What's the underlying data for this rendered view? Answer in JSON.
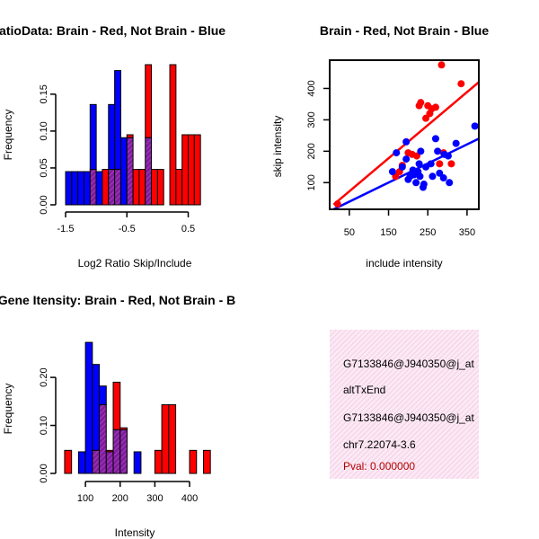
{
  "colors": {
    "red": "#ff0000",
    "blue": "#0000ff",
    "overlap": "#9a2aa8",
    "info_bg": "#f7d9ec"
  },
  "chart_data": [
    {
      "id": "ratio",
      "type": "bar",
      "title": "RatioData: Brain - Red, Not Brain - Blue",
      "xlabel": "Log2 Ratio Skip/Include",
      "ylabel": "Frequency",
      "xticks": [
        -1.5,
        -0.5,
        0.5
      ],
      "yticks": [
        0.0,
        0.05,
        0.1,
        0.15
      ],
      "xlim": [
        -1.5,
        0.8
      ],
      "ylim": [
        0,
        0.19
      ],
      "bin_width": 0.1,
      "series": [
        {
          "name": "Brain",
          "color": "red",
          "bins": [
            {
              "x": -1.1,
              "v": 0.048
            },
            {
              "x": -0.9,
              "v": 0.048
            },
            {
              "x": -0.8,
              "v": 0.048
            },
            {
              "x": -0.7,
              "v": 0.048
            },
            {
              "x": -0.5,
              "v": 0.095
            },
            {
              "x": -0.4,
              "v": 0.048
            },
            {
              "x": -0.3,
              "v": 0.048
            },
            {
              "x": -0.2,
              "v": 0.19
            },
            {
              "x": -0.1,
              "v": 0.048
            },
            {
              "x": 0.0,
              "v": 0.048
            },
            {
              "x": 0.2,
              "v": 0.19
            },
            {
              "x": 0.3,
              "v": 0.048
            },
            {
              "x": 0.4,
              "v": 0.095
            },
            {
              "x": 0.5,
              "v": 0.095
            },
            {
              "x": 0.6,
              "v": 0.095
            }
          ]
        },
        {
          "name": "Not Brain",
          "color": "blue",
          "bins": [
            {
              "x": -1.5,
              "v": 0.045
            },
            {
              "x": -1.4,
              "v": 0.045
            },
            {
              "x": -1.3,
              "v": 0.045
            },
            {
              "x": -1.2,
              "v": 0.045
            },
            {
              "x": -1.1,
              "v": 0.136
            },
            {
              "x": -1.0,
              "v": 0.045
            },
            {
              "x": -0.8,
              "v": 0.136
            },
            {
              "x": -0.7,
              "v": 0.182
            },
            {
              "x": -0.6,
              "v": 0.091
            },
            {
              "x": -0.5,
              "v": 0.091
            },
            {
              "x": -0.2,
              "v": 0.091
            }
          ]
        }
      ]
    },
    {
      "id": "scatter",
      "type": "scatter",
      "title": "Brain - Red, Not Brain - Blue",
      "xlabel": "include intensity",
      "ylabel": "skip intensity",
      "xticks": [
        50,
        150,
        250,
        350
      ],
      "yticks": [
        100,
        200,
        300,
        400
      ],
      "xlim": [
        0,
        380
      ],
      "ylim": [
        15,
        490
      ],
      "series": [
        {
          "name": "Brain",
          "color": "red",
          "points": [
            [
              20,
              32
            ],
            [
              168,
              120
            ],
            [
              178,
              135
            ],
            [
              185,
              155
            ],
            [
              200,
              195
            ],
            [
              210,
              190
            ],
            [
              222,
              185
            ],
            [
              228,
              345
            ],
            [
              232,
              355
            ],
            [
              245,
              305
            ],
            [
              250,
              345
            ],
            [
              260,
              335
            ],
            [
              270,
              340
            ],
            [
              285,
              475
            ],
            [
              280,
              160
            ],
            [
              290,
              195
            ],
            [
              310,
              160
            ],
            [
              335,
              415
            ],
            [
              255,
              320
            ]
          ],
          "fit": [
            [
              10,
              30
            ],
            [
              380,
              420
            ]
          ]
        },
        {
          "name": "Not Brain",
          "color": "blue",
          "points": [
            [
              160,
              135
            ],
            [
              170,
              195
            ],
            [
              185,
              150
            ],
            [
              195,
              230
            ],
            [
              200,
              110
            ],
            [
              205,
              120
            ],
            [
              212,
              140
            ],
            [
              220,
              100
            ],
            [
              228,
              160
            ],
            [
              232,
              200
            ],
            [
              238,
              85
            ],
            [
              245,
              150
            ],
            [
              258,
              160
            ],
            [
              262,
              120
            ],
            [
              270,
              240
            ],
            [
              275,
              200
            ],
            [
              280,
              130
            ],
            [
              292,
              190
            ],
            [
              302,
              185
            ],
            [
              322,
              225
            ],
            [
              370,
              280
            ],
            [
              195,
              175
            ],
            [
              215,
              125
            ],
            [
              225,
              135
            ],
            [
              230,
              120
            ],
            [
              240,
              95
            ],
            [
              290,
              115
            ],
            [
              305,
              100
            ]
          ],
          "fit": [
            [
              10,
              15
            ],
            [
              380,
              240
            ]
          ]
        }
      ]
    },
    {
      "id": "intensity",
      "type": "bar",
      "title": "Gene Itensity: Brain - Red, Not Brain - B",
      "xlabel": "Intensity",
      "ylabel": "Frequency",
      "xticks": [
        100,
        200,
        300,
        400
      ],
      "yticks": [
        0.0,
        0.1,
        0.2
      ],
      "xlim": [
        35,
        475
      ],
      "ylim": [
        0,
        0.29
      ],
      "bin_width": 20,
      "series": [
        {
          "name": "Brain",
          "color": "red",
          "bins": [
            {
              "x": 40,
              "v": 0.048
            },
            {
              "x": 120,
              "v": 0.048
            },
            {
              "x": 140,
              "v": 0.143
            },
            {
              "x": 160,
              "v": 0.048
            },
            {
              "x": 180,
              "v": 0.19
            },
            {
              "x": 200,
              "v": 0.095
            },
            {
              "x": 300,
              "v": 0.048
            },
            {
              "x": 320,
              "v": 0.143
            },
            {
              "x": 340,
              "v": 0.143
            },
            {
              "x": 400,
              "v": 0.048
            },
            {
              "x": 440,
              "v": 0.048
            }
          ]
        },
        {
          "name": "Not Brain",
          "color": "blue",
          "bins": [
            {
              "x": 80,
              "v": 0.045
            },
            {
              "x": 100,
              "v": 0.273
            },
            {
              "x": 120,
              "v": 0.227
            },
            {
              "x": 140,
              "v": 0.182
            },
            {
              "x": 160,
              "v": 0.045
            },
            {
              "x": 180,
              "v": 0.091
            },
            {
              "x": 200,
              "v": 0.091
            },
            {
              "x": 240,
              "v": 0.045
            }
          ]
        }
      ]
    }
  ],
  "info_panel": {
    "line1": "G7133846@J940350@j_at",
    "line2": "altTxEnd",
    "line3": "G7133846@J940350@j_at",
    "line4": "chr7.22074-3.6",
    "pval": "Pval: 0.000000"
  }
}
